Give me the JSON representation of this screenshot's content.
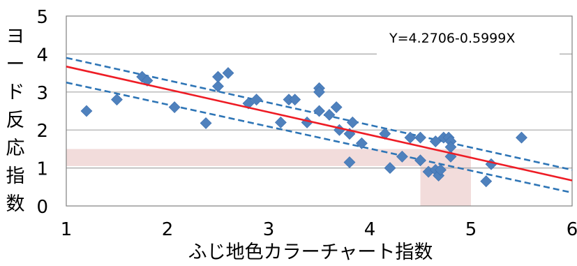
{
  "chart_data": {
    "type": "scatter",
    "title": "",
    "xlabel": "ふじ地色カラーチャート指数",
    "ylabel": "ヨード反応指数",
    "xlim": [
      1,
      6
    ],
    "ylim": [
      0,
      5
    ],
    "x_ticks": [
      "1",
      "2",
      "3",
      "4",
      "5",
      "6"
    ],
    "y_ticks": [
      "0",
      "1",
      "2",
      "3",
      "4",
      "5"
    ],
    "grid": "horizontal",
    "legend": "none",
    "equation": "Y=4.2706-0.5999X",
    "regression": {
      "intercept": 4.2706,
      "slope": -0.5999
    },
    "confidence_band": {
      "upper": [
        [
          1,
          3.9
        ],
        [
          6,
          0.95
        ]
      ],
      "lower": [
        [
          1,
          3.25
        ],
        [
          6,
          0.35
        ]
      ]
    },
    "highlight_regions": [
      {
        "x": [
          1,
          5
        ],
        "y": [
          1.05,
          1.5
        ]
      },
      {
        "x": [
          4.5,
          5
        ],
        "y": [
          0,
          1.5
        ]
      }
    ],
    "colors": {
      "points": "#4f81bd",
      "regression": "#ee1c25",
      "band": "#2e75b6",
      "highlight": "#f2dcdb",
      "grid": "#a6a6a6"
    },
    "series": [
      {
        "points": [
          [
            1.2,
            2.5
          ],
          [
            1.5,
            2.8
          ],
          [
            1.75,
            3.4
          ],
          [
            1.8,
            3.3
          ],
          [
            2.07,
            2.6
          ],
          [
            2.38,
            2.18
          ],
          [
            2.5,
            3.15
          ],
          [
            2.5,
            3.4
          ],
          [
            2.6,
            3.5
          ],
          [
            2.8,
            2.7
          ],
          [
            2.88,
            2.8
          ],
          [
            3.12,
            2.2
          ],
          [
            3.2,
            2.8
          ],
          [
            3.26,
            2.8
          ],
          [
            3.38,
            2.2
          ],
          [
            3.5,
            3.1
          ],
          [
            3.5,
            3.0
          ],
          [
            3.5,
            2.5
          ],
          [
            3.6,
            2.4
          ],
          [
            3.67,
            2.6
          ],
          [
            3.7,
            2.0
          ],
          [
            3.8,
            1.9
          ],
          [
            3.8,
            1.15
          ],
          [
            3.83,
            2.2
          ],
          [
            3.92,
            1.65
          ],
          [
            4.15,
            1.9
          ],
          [
            4.2,
            1.0
          ],
          [
            4.32,
            1.3
          ],
          [
            4.4,
            1.8
          ],
          [
            4.5,
            1.2
          ],
          [
            4.5,
            1.8
          ],
          [
            4.58,
            0.9
          ],
          [
            4.65,
            1.7
          ],
          [
            4.65,
            0.95
          ],
          [
            4.68,
            0.8
          ],
          [
            4.7,
            0.95
          ],
          [
            4.73,
            1.8
          ],
          [
            4.78,
            1.8
          ],
          [
            4.8,
            1.7
          ],
          [
            4.8,
            1.55
          ],
          [
            4.8,
            1.3
          ],
          [
            5.15,
            0.65
          ],
          [
            5.2,
            1.1
          ],
          [
            5.5,
            1.8
          ]
        ]
      }
    ]
  }
}
